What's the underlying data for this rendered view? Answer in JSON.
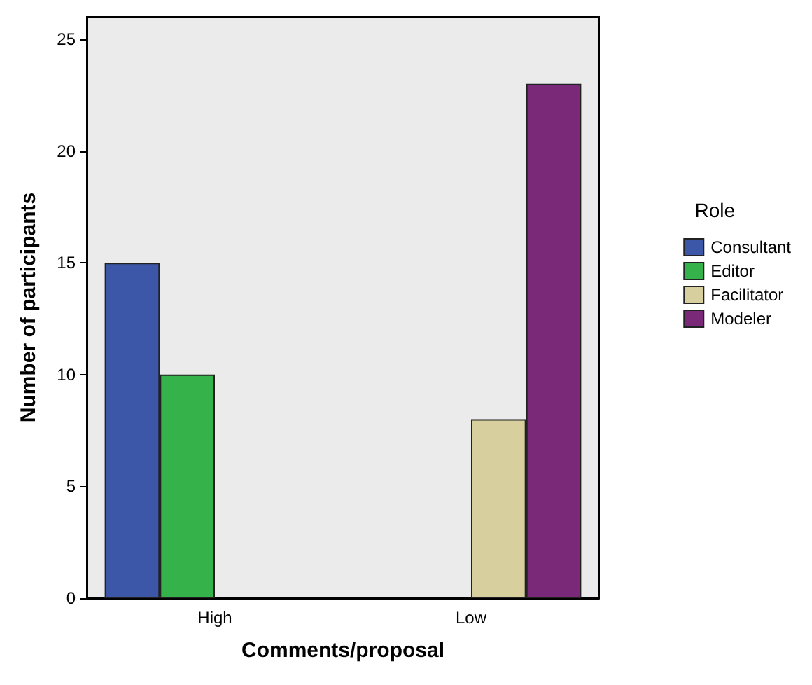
{
  "chart_data": {
    "type": "bar",
    "xlabel": "Comments/proposal",
    "ylabel": "Number of participants",
    "legend_title": "Role",
    "categories": [
      "High",
      "Low"
    ],
    "series": [
      {
        "name": "Consultant",
        "color": "#3d57a8",
        "values": [
          15,
          null
        ]
      },
      {
        "name": "Editor",
        "color": "#35b34a",
        "values": [
          10,
          null
        ]
      },
      {
        "name": "Facilitator",
        "color": "#d7cf9e",
        "values": [
          null,
          8
        ]
      },
      {
        "name": "Modeler",
        "color": "#7a2878",
        "values": [
          null,
          23
        ]
      }
    ],
    "ylim": [
      0,
      26
    ],
    "yticks": [
      0,
      5,
      10,
      15,
      20,
      25
    ],
    "grid": false,
    "legend": "right"
  }
}
